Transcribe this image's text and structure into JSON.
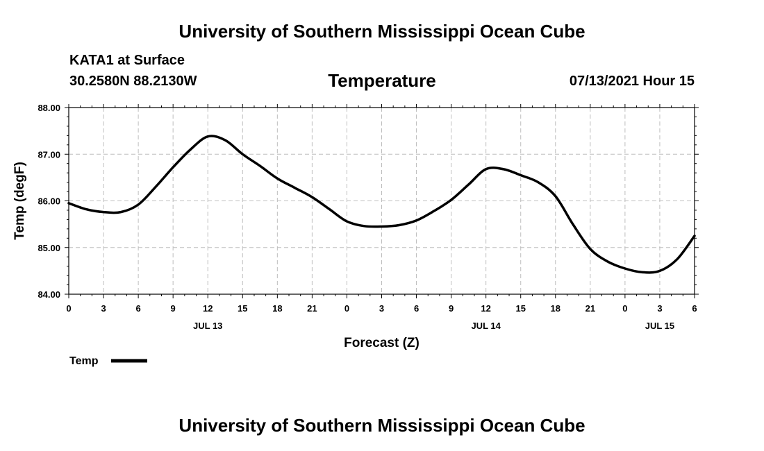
{
  "header": {
    "title": "University of Southern Mississippi Ocean Cube",
    "station": "KATA1 at Surface",
    "coords": "30.2580N  88.2130W",
    "parameter": "Temperature",
    "datetime": "07/13/2021 Hour 15"
  },
  "footer": {
    "title": "University of Southern Mississippi Ocean Cube"
  },
  "chart_data": {
    "type": "line",
    "title": "Temperature",
    "xlabel": "Forecast (Z)",
    "ylabel": "Temp (degF)",
    "xlim": [
      0,
      54
    ],
    "ylim": [
      84.0,
      88.0
    ],
    "grid": true,
    "x_tick_labels": [
      "0",
      "3",
      "6",
      "9",
      "12",
      "15",
      "18",
      "21",
      "0",
      "3",
      "6",
      "9",
      "12",
      "15",
      "18",
      "21",
      "0",
      "3",
      "6"
    ],
    "y_tick_labels": [
      "84.00",
      "85.00",
      "86.00",
      "87.00",
      "88.00"
    ],
    "date_labels": [
      {
        "label": "JUL 13",
        "hour": 12
      },
      {
        "label": "JUL 14",
        "hour": 36
      },
      {
        "label": "JUL 15",
        "hour": 51
      }
    ],
    "legend": {
      "label": "Temp",
      "placement": "bottom-left"
    },
    "series": [
      {
        "name": "Temp",
        "color": "#000000",
        "x": [
          0,
          1.5,
          3,
          4.5,
          6,
          7.5,
          9,
          10.5,
          12,
          13.5,
          15,
          16.5,
          18,
          19.5,
          21,
          22.5,
          24,
          25.5,
          27,
          28.5,
          30,
          31.5,
          33,
          34.5,
          36,
          37.5,
          39,
          40.5,
          42,
          43.5,
          45,
          46.5,
          48,
          49.5,
          51,
          52.5,
          54
        ],
        "values": [
          85.95,
          85.82,
          85.76,
          85.76,
          85.92,
          86.3,
          86.72,
          87.1,
          87.38,
          87.3,
          87.0,
          86.75,
          86.48,
          86.28,
          86.08,
          85.82,
          85.56,
          85.46,
          85.45,
          85.48,
          85.58,
          85.78,
          86.02,
          86.35,
          86.68,
          86.68,
          86.55,
          86.4,
          86.1,
          85.5,
          84.97,
          84.7,
          84.55,
          84.47,
          84.5,
          84.75,
          85.25
        ]
      }
    ]
  }
}
